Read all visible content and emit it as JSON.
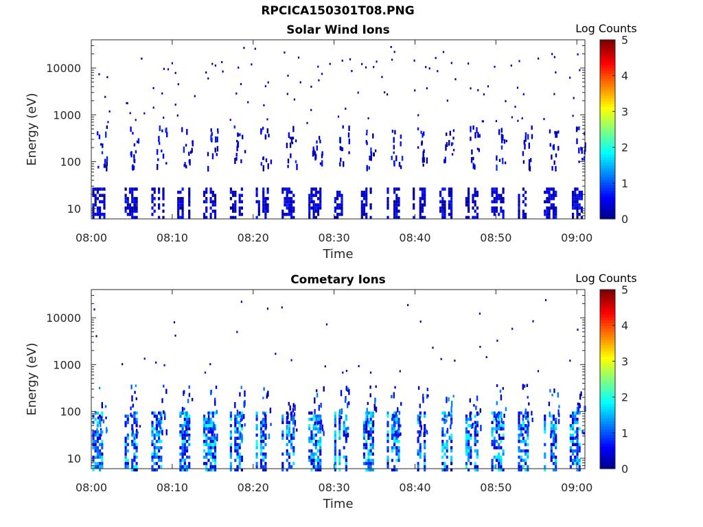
{
  "figure": {
    "title": "RPCICA150301T08.PNG"
  },
  "chart_data": [
    {
      "type": "heatmap",
      "title": "Solar Wind Ions",
      "xlabel": "Time",
      "ylabel": "Energy (eV)",
      "x_ticks": [
        "08:00",
        "08:10",
        "08:20",
        "08:30",
        "08:40",
        "08:50",
        "09:00"
      ],
      "xlim": [
        "08:00",
        "09:01"
      ],
      "y_ticks": [
        10,
        100,
        1000,
        10000
      ],
      "ylim": [
        6,
        40000
      ],
      "yscale": "log",
      "colorbar": {
        "label": "Log Counts",
        "ticks": [
          0,
          1,
          2,
          3,
          4,
          5
        ],
        "range": [
          0,
          5
        ],
        "colormap": "jet"
      },
      "pattern": {
        "period_min": 3.3,
        "low_band_eV": [
          6,
          28
        ],
        "low_band_level": [
          0.0,
          0.8
        ],
        "scatter_levels": [
          0.0,
          0.7
        ],
        "spike_times_min": [
          1.0,
          5.0,
          8.3,
          11.5,
          14.7,
          18.0,
          21.2,
          24.4,
          27.7,
          30.9,
          34.2,
          37.4,
          40.6,
          43.9,
          47.1,
          50.3,
          53.6,
          56.8,
          60.0
        ]
      }
    },
    {
      "type": "heatmap",
      "title": "Cometary Ions",
      "xlabel": "Time",
      "ylabel": "Energy (eV)",
      "x_ticks": [
        "08:00",
        "08:10",
        "08:20",
        "08:30",
        "08:40",
        "08:50",
        "09:00"
      ],
      "xlim": [
        "08:00",
        "09:01"
      ],
      "y_ticks": [
        10,
        100,
        1000,
        10000
      ],
      "ylim": [
        6,
        40000
      ],
      "yscale": "log",
      "colorbar": {
        "label": "Log Counts",
        "ticks": [
          0,
          1,
          2,
          3,
          4,
          5
        ],
        "range": [
          0,
          5
        ],
        "colormap": "jet"
      },
      "pattern": {
        "period_min": 3.3,
        "low_band_eV": [
          6,
          100
        ],
        "low_band_level": [
          0.2,
          2.1
        ],
        "scatter_levels": [
          0.0,
          0.8
        ],
        "spike_times_min": [
          1.0,
          5.0,
          8.3,
          11.5,
          14.7,
          18.0,
          21.2,
          24.4,
          27.7,
          30.9,
          34.2,
          37.4,
          40.6,
          43.9,
          47.1,
          50.3,
          53.6,
          56.8,
          60.0
        ]
      }
    }
  ]
}
